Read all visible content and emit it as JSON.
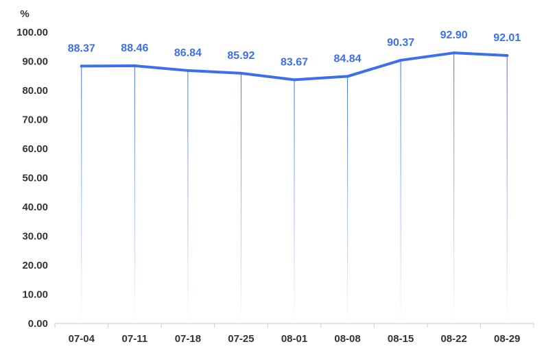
{
  "chart_data": {
    "type": "line",
    "title": "",
    "xlabel": "",
    "ylabel": "",
    "unit_label": "%",
    "categories": [
      "07-04",
      "07-11",
      "07-18",
      "07-25",
      "08-01",
      "08-08",
      "08-15",
      "08-22",
      "08-29"
    ],
    "series": [
      {
        "values": [
          88.37,
          88.46,
          86.84,
          85.92,
          83.67,
          84.84,
          90.37,
          92.9,
          92.01
        ],
        "value_labels": [
          "88.37",
          "88.46",
          "86.84",
          "85.92",
          "83.67",
          "84.84",
          "90.37",
          "92.90",
          "92.01"
        ],
        "color": "#3b6ff0"
      }
    ],
    "ylim": [
      0,
      100
    ],
    "yticks": [
      "0.00",
      "10.00",
      "20.00",
      "30.00",
      "40.00",
      "50.00",
      "60.00",
      "70.00",
      "80.00",
      "90.00",
      "100.00"
    ],
    "grid": false,
    "legend": "none",
    "colors": {
      "line": "#3b6ff0",
      "axis": "#cccccc",
      "text": "#333333"
    }
  }
}
